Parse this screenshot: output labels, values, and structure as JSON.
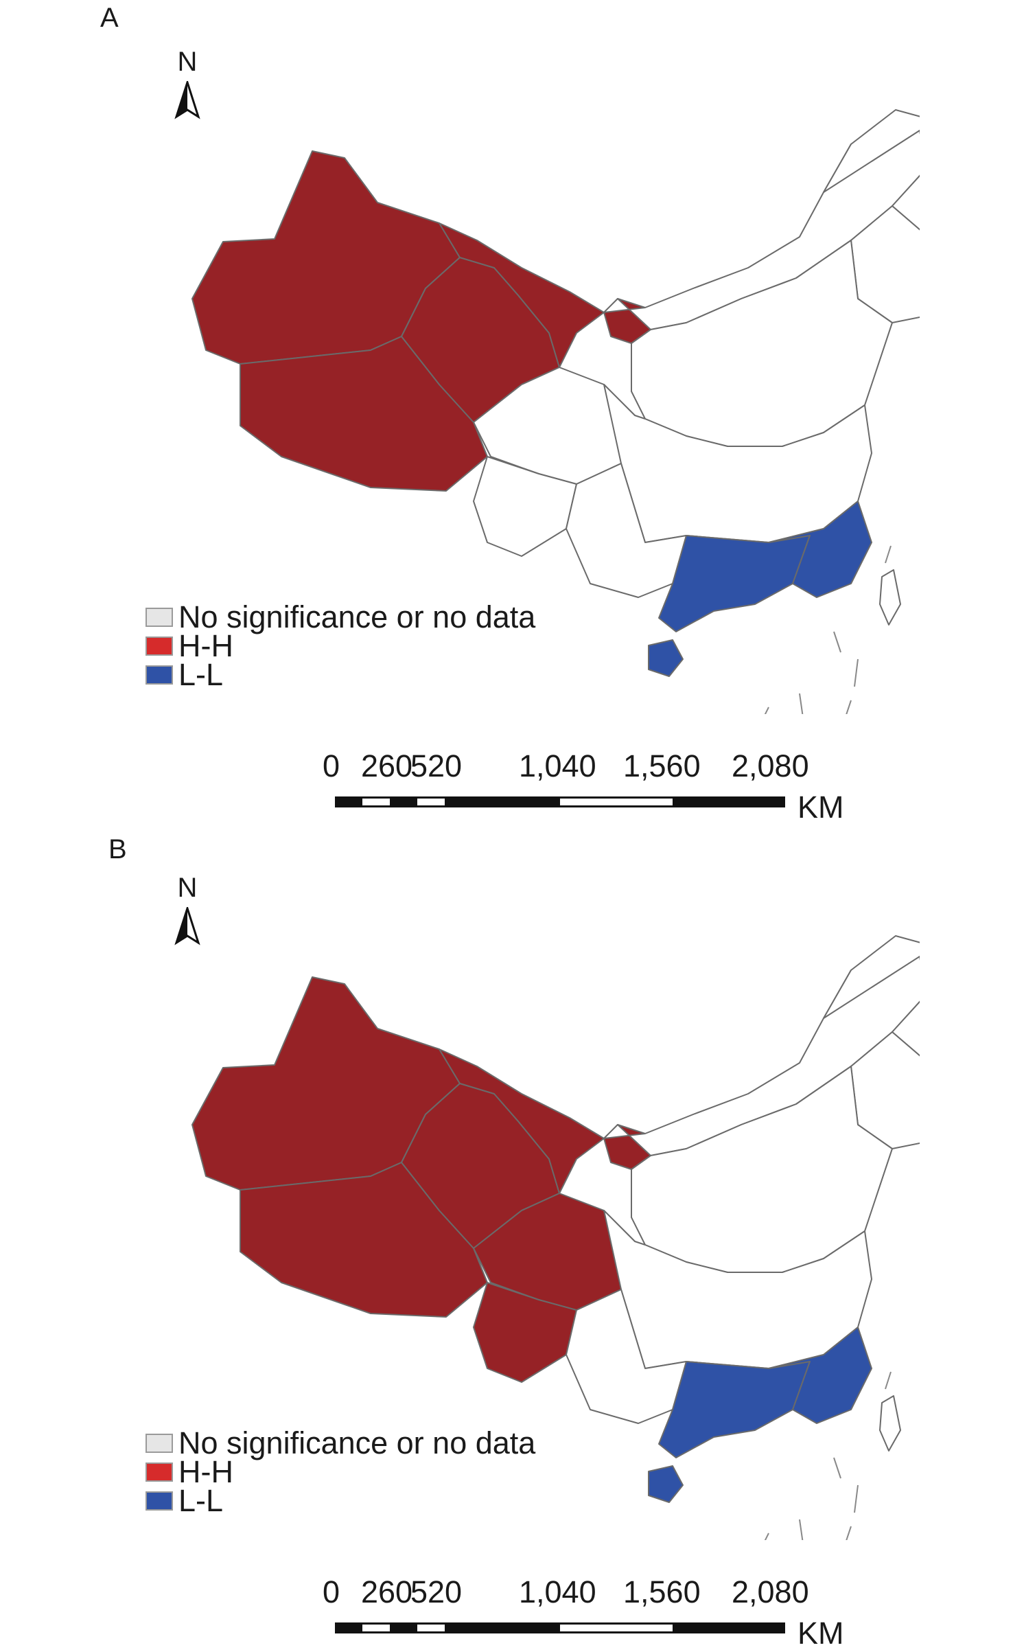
{
  "panels": [
    {
      "label": "A",
      "north": "N",
      "highlighted": {
        "H-H": [
          "Xinjiang",
          "Tibet",
          "Qinghai",
          "Gansu",
          "Ningxia"
        ],
        "L-L": [
          "Guangdong",
          "Fujian",
          "Hainan"
        ]
      }
    },
    {
      "label": "B",
      "north": "N",
      "highlighted": {
        "H-H": [
          "Xinjiang",
          "Tibet",
          "Qinghai",
          "Gansu",
          "Ningxia",
          "Sichuan",
          "Yunnan"
        ],
        "L-L": [
          "Guangdong",
          "Fujian",
          "Hainan"
        ]
      }
    }
  ],
  "legend": [
    {
      "label": "No significance or no data",
      "color": "#e6e6e6"
    },
    {
      "label": "H-H",
      "color": "#d62b2b"
    },
    {
      "label": "L-L",
      "color": "#2f52a6"
    }
  ],
  "map_colors": {
    "hh_fill": "#962226",
    "ll_fill": "#2f52a6",
    "border": "#6a6a6a"
  },
  "scale_bar": {
    "ticks": [
      "0",
      "260",
      "520",
      "1,040",
      "1,560",
      "2,080"
    ],
    "unit": "KM"
  }
}
